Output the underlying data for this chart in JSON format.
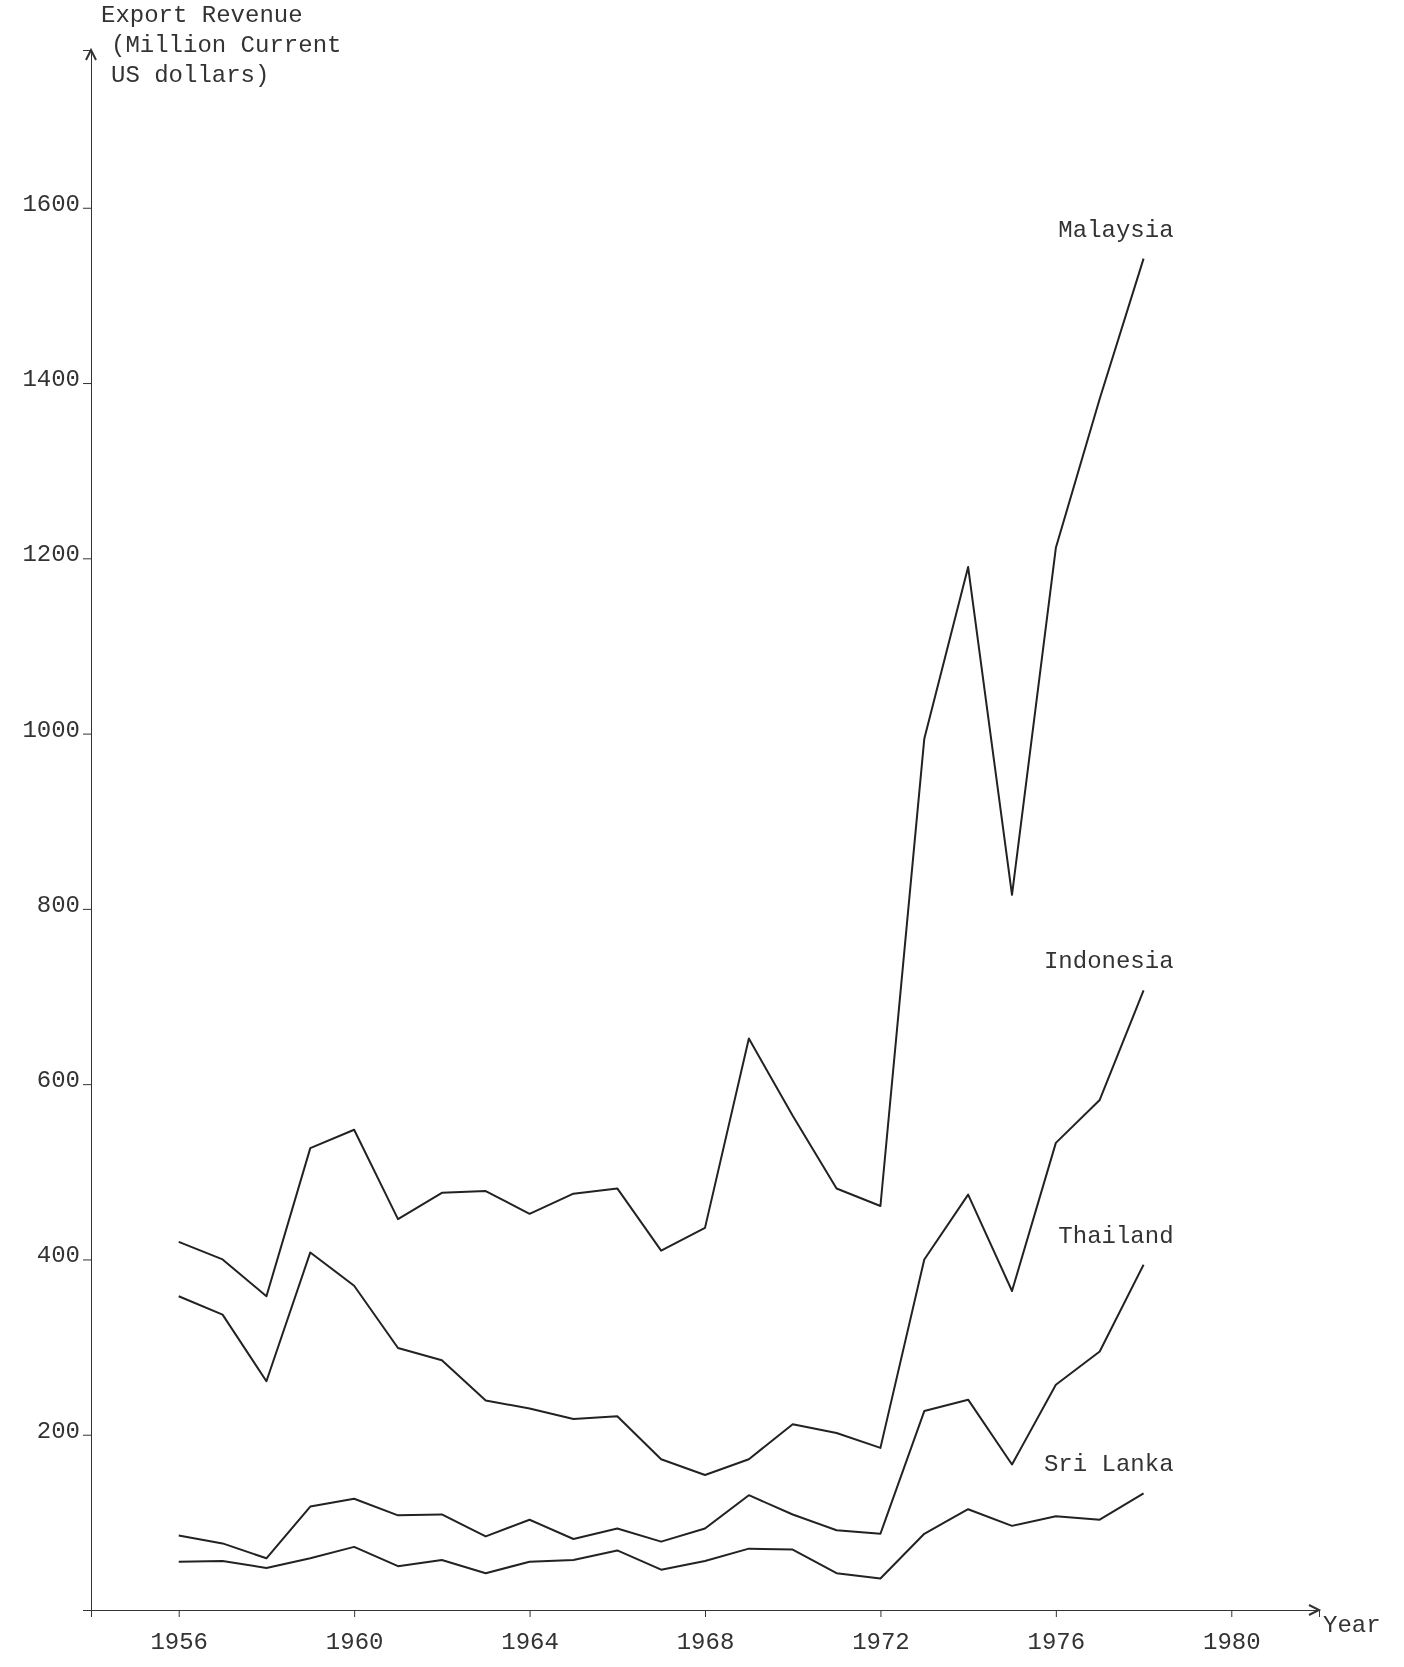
{
  "chart_data": {
    "type": "line",
    "ylabel": "Export Revenue (Million Current US dollars)",
    "xlabel": "Year",
    "x": [
      1956,
      1957,
      1958,
      1959,
      1960,
      1961,
      1962,
      1963,
      1964,
      1965,
      1966,
      1967,
      1968,
      1969,
      1970,
      1971,
      1972,
      1973,
      1974,
      1975,
      1976,
      1977,
      1978
    ],
    "xlim": [
      1954,
      1982
    ],
    "xticks": [
      1956,
      1960,
      1964,
      1968,
      1972,
      1976,
      1980
    ],
    "ylim": [
      0,
      1780
    ],
    "yticks": [
      200,
      400,
      600,
      800,
      1000,
      1200,
      1400,
      1600
    ],
    "grid": false,
    "marker": "none",
    "line_style": "solid",
    "series": [
      {
        "name": "Malaysia",
        "color": "#222222",
        "values": [
          420,
          400,
          358,
          527,
          548,
          446,
          476,
          478,
          452,
          475,
          481,
          410,
          436,
          652,
          564,
          481,
          461,
          994,
          1190,
          816,
          1212,
          1382,
          1542
        ]
      },
      {
        "name": "Indonesia",
        "color": "#222222",
        "values": [
          358,
          337,
          261,
          408,
          370,
          299,
          285,
          239,
          230,
          218,
          221,
          172,
          154,
          172,
          212,
          202,
          185,
          400,
          474,
          364,
          533,
          582,
          707
        ]
      },
      {
        "name": "Thailand",
        "color": "#222222",
        "values": [
          85,
          76,
          59,
          118,
          127,
          108,
          109,
          84,
          103,
          81,
          93,
          78,
          93,
          131,
          109,
          91,
          87,
          227,
          240,
          166,
          257,
          295,
          394
        ]
      },
      {
        "name": "Sri Lanka",
        "color": "#222222",
        "values": [
          55,
          56,
          48,
          59,
          72,
          50,
          57,
          42,
          55,
          57,
          68,
          46,
          56,
          70,
          69,
          42,
          36,
          87,
          115,
          96,
          107,
          103,
          133
        ]
      }
    ]
  }
}
